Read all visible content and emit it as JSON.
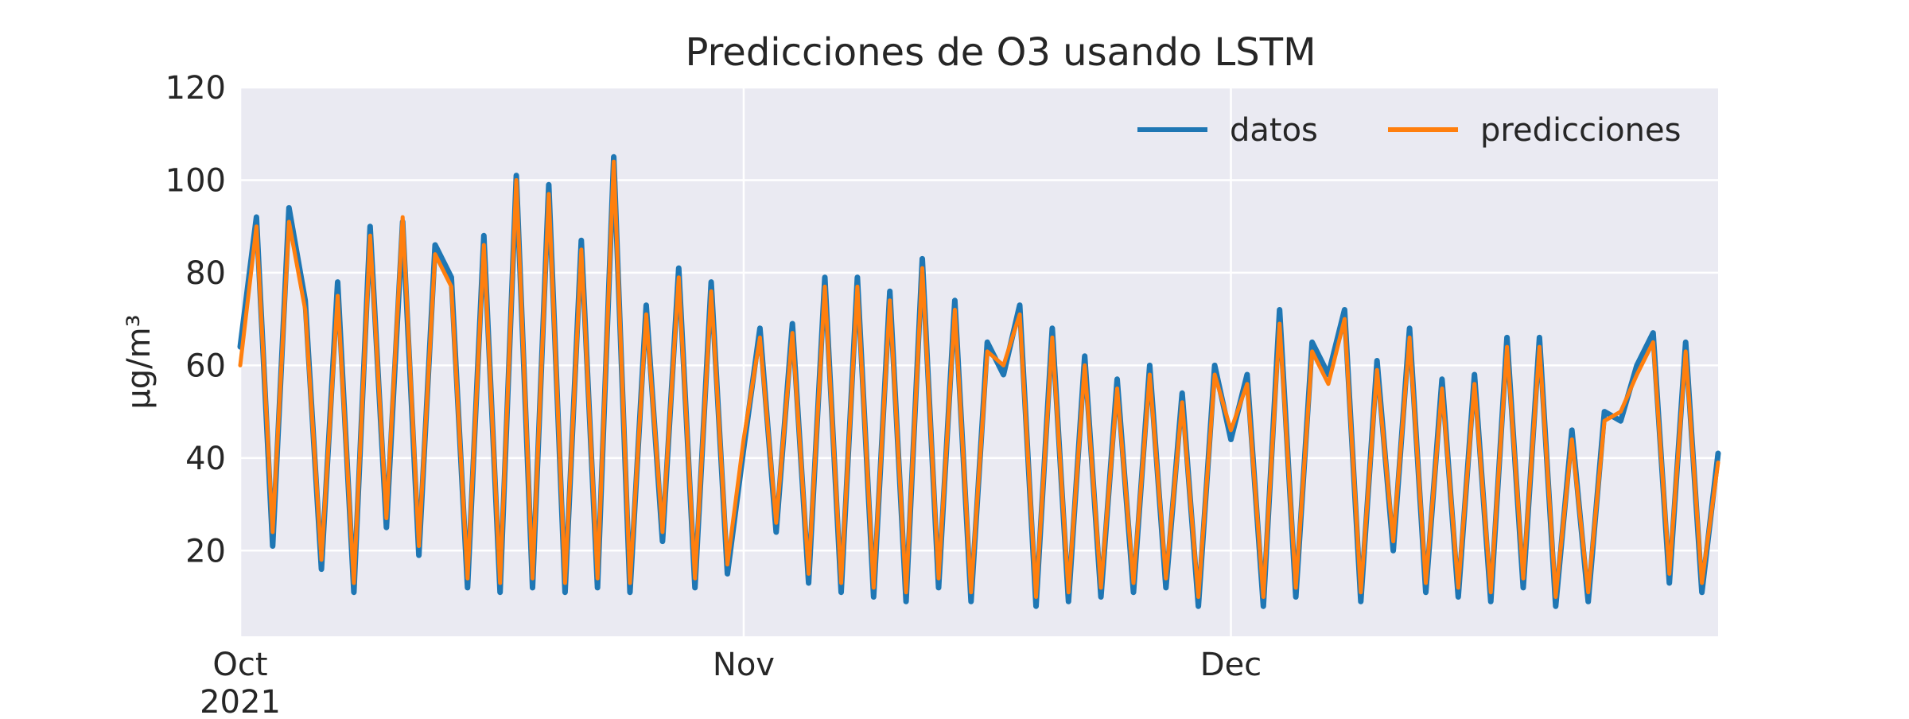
{
  "chart_data": {
    "type": "line",
    "title": "Predicciones de O3 usando LSTM",
    "xlabel": "",
    "ylabel": "µg/m³",
    "x_ticks": [
      {
        "date": "2021-10-01",
        "label": "Oct",
        "sublabel": "2021"
      },
      {
        "date": "2021-11-01",
        "label": "Nov",
        "sublabel": ""
      },
      {
        "date": "2021-12-01",
        "label": "Dec",
        "sublabel": ""
      }
    ],
    "y_ticks": [
      20,
      40,
      60,
      80,
      100,
      120
    ],
    "xlim": [
      "2021-10-01",
      "2021-12-31"
    ],
    "ylim": [
      1.5,
      120
    ],
    "grid": true,
    "legend_placement": "top-right",
    "legend_columns": 2,
    "series": [
      {
        "name": "datos",
        "color": "#1f77b4",
        "x": [
          "2021-10-01",
          "2021-10-02",
          "2021-10-03",
          "2021-10-04",
          "2021-10-05",
          "2021-10-06",
          "2021-10-07",
          "2021-10-08",
          "2021-10-09",
          "2021-10-10",
          "2021-10-11",
          "2021-10-12",
          "2021-10-13",
          "2021-10-14",
          "2021-10-15",
          "2021-10-16",
          "2021-10-17",
          "2021-10-18",
          "2021-10-19",
          "2021-10-20",
          "2021-10-21",
          "2021-10-22",
          "2021-10-23",
          "2021-10-24",
          "2021-10-25",
          "2021-10-26",
          "2021-10-27",
          "2021-10-28",
          "2021-10-29",
          "2021-10-30",
          "2021-10-31",
          "2021-11-01",
          "2021-11-02",
          "2021-11-03",
          "2021-11-04",
          "2021-11-05",
          "2021-11-06",
          "2021-11-07",
          "2021-11-08",
          "2021-11-09",
          "2021-11-10",
          "2021-11-11",
          "2021-11-12",
          "2021-11-13",
          "2021-11-14",
          "2021-11-15",
          "2021-11-16",
          "2021-11-17",
          "2021-11-18",
          "2021-11-19",
          "2021-11-20",
          "2021-11-21",
          "2021-11-22",
          "2021-11-23",
          "2021-11-24",
          "2021-11-25",
          "2021-11-26",
          "2021-11-27",
          "2021-11-28",
          "2021-11-29",
          "2021-11-30",
          "2021-12-01",
          "2021-12-02",
          "2021-12-03",
          "2021-12-04",
          "2021-12-05",
          "2021-12-06",
          "2021-12-07",
          "2021-12-08",
          "2021-12-09",
          "2021-12-10",
          "2021-12-11",
          "2021-12-12",
          "2021-12-13",
          "2021-12-14",
          "2021-12-15",
          "2021-12-16",
          "2021-12-17",
          "2021-12-18",
          "2021-12-19",
          "2021-12-20",
          "2021-12-21",
          "2021-12-22",
          "2021-12-23",
          "2021-12-24",
          "2021-12-25",
          "2021-12-26",
          "2021-12-27",
          "2021-12-28",
          "2021-12-29",
          "2021-12-30",
          "2021-12-31"
        ],
        "y": [
          64,
          92,
          21,
          94,
          74,
          16,
          78,
          11,
          90,
          25,
          91,
          19,
          86,
          79,
          12,
          88,
          11,
          101,
          12,
          99,
          11,
          87,
          12,
          105,
          11,
          73,
          22,
          81,
          12,
          78,
          15,
          42,
          68,
          24,
          69,
          13,
          79,
          11,
          79,
          10,
          76,
          9,
          83,
          12,
          74,
          9,
          65,
          58,
          73,
          8,
          68,
          9,
          62,
          10,
          57,
          11,
          60,
          12,
          54,
          8,
          60,
          44,
          58,
          8,
          72,
          10,
          65,
          58,
          72,
          9,
          61,
          20,
          68,
          11,
          57,
          10,
          58,
          9,
          66,
          12,
          66,
          8,
          46,
          9,
          50,
          48,
          60,
          67,
          13,
          65,
          11,
          41
        ]
      },
      {
        "name": "predicciones",
        "color": "#ff7f0e",
        "x": [
          "2021-10-01",
          "2021-10-02",
          "2021-10-03",
          "2021-10-04",
          "2021-10-05",
          "2021-10-06",
          "2021-10-07",
          "2021-10-08",
          "2021-10-09",
          "2021-10-10",
          "2021-10-11",
          "2021-10-12",
          "2021-10-13",
          "2021-10-14",
          "2021-10-15",
          "2021-10-16",
          "2021-10-17",
          "2021-10-18",
          "2021-10-19",
          "2021-10-20",
          "2021-10-21",
          "2021-10-22",
          "2021-10-23",
          "2021-10-24",
          "2021-10-25",
          "2021-10-26",
          "2021-10-27",
          "2021-10-28",
          "2021-10-29",
          "2021-10-30",
          "2021-10-31",
          "2021-11-01",
          "2021-11-02",
          "2021-11-03",
          "2021-11-04",
          "2021-11-05",
          "2021-11-06",
          "2021-11-07",
          "2021-11-08",
          "2021-11-09",
          "2021-11-10",
          "2021-11-11",
          "2021-11-12",
          "2021-11-13",
          "2021-11-14",
          "2021-11-15",
          "2021-11-16",
          "2021-11-17",
          "2021-11-18",
          "2021-11-19",
          "2021-11-20",
          "2021-11-21",
          "2021-11-22",
          "2021-11-23",
          "2021-11-24",
          "2021-11-25",
          "2021-11-26",
          "2021-11-27",
          "2021-11-28",
          "2021-11-29",
          "2021-11-30",
          "2021-12-01",
          "2021-12-02",
          "2021-12-03",
          "2021-12-04",
          "2021-12-05",
          "2021-12-06",
          "2021-12-07",
          "2021-12-08",
          "2021-12-09",
          "2021-12-10",
          "2021-12-11",
          "2021-12-12",
          "2021-12-13",
          "2021-12-14",
          "2021-12-15",
          "2021-12-16",
          "2021-12-17",
          "2021-12-18",
          "2021-12-19",
          "2021-12-20",
          "2021-12-21",
          "2021-12-22",
          "2021-12-23",
          "2021-12-24",
          "2021-12-25",
          "2021-12-26",
          "2021-12-27",
          "2021-12-28",
          "2021-12-29",
          "2021-12-30",
          "2021-12-31"
        ],
        "y": [
          60,
          90,
          24,
          91,
          72,
          18,
          75,
          13,
          88,
          27,
          92,
          21,
          84,
          77,
          14,
          86,
          13,
          100,
          14,
          97,
          13,
          85,
          14,
          104,
          13,
          71,
          24,
          79,
          14,
          76,
          17,
          44,
          66,
          26,
          67,
          15,
          77,
          13,
          77,
          12,
          74,
          11,
          81,
          14,
          72,
          11,
          63,
          60,
          71,
          10,
          66,
          11,
          60,
          12,
          55,
          13,
          58,
          14,
          52,
          10,
          58,
          46,
          56,
          10,
          69,
          12,
          63,
          56,
          70,
          11,
          59,
          22,
          66,
          13,
          55,
          12,
          56,
          11,
          64,
          14,
          64,
          10,
          44,
          11,
          48,
          50,
          58,
          65,
          15,
          63,
          13,
          39
        ]
      }
    ]
  }
}
